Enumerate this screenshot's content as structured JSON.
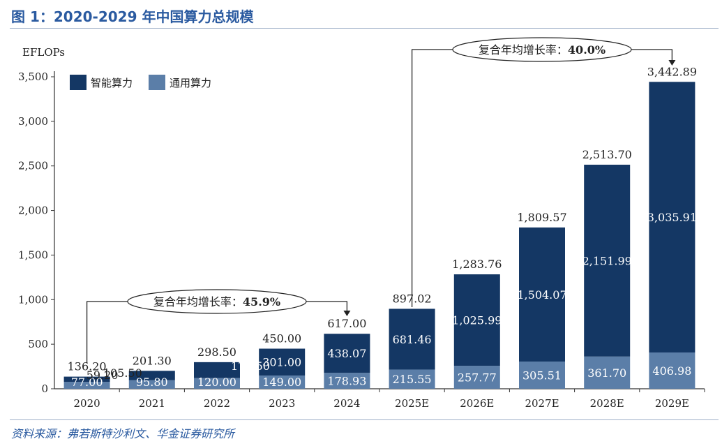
{
  "figure_title": "图 1：2020-2029 年中国算力总规模",
  "source_text": "资料来源：弗若斯特沙利文、华金证券研究所",
  "colors": {
    "smart": "#143764",
    "general": "#5b7ea8",
    "title": "#2a5aa0",
    "axis": "#333333"
  },
  "chart_data": {
    "type": "bar",
    "stacked": true,
    "title": "",
    "xlabel": "",
    "ylabel": "EFLOPs",
    "ylim": [
      0,
      3500
    ],
    "yticks": [
      0,
      500,
      1000,
      1500,
      2000,
      2500,
      3000,
      3500
    ],
    "ytick_labels": [
      "0",
      "500",
      "1,000",
      "1,500",
      "2,000",
      "2,500",
      "3,000",
      "3,500"
    ],
    "categories": [
      "2020",
      "2021",
      "2022",
      "2023",
      "2024",
      "2025E",
      "2026E",
      "2027E",
      "2028E",
      "2029E"
    ],
    "series": [
      {
        "name": "通用算力",
        "values": [
          77.0,
          95.8,
          120.0,
          149.0,
          178.93,
          215.55,
          257.77,
          305.51,
          361.7,
          406.98
        ],
        "labels": [
          "77.00",
          "95.80",
          "120.00",
          "149.00",
          "178.93",
          "215.55",
          "257.77",
          "305.51",
          "361.70",
          "406.98"
        ]
      },
      {
        "name": "智能算力",
        "values": [
          59.2,
          105.5,
          178.5,
          301.0,
          438.07,
          681.46,
          1025.99,
          1504.07,
          2151.99,
          3035.91
        ],
        "labels": [
          "59.20",
          "105.50",
          "178.50",
          "301.00",
          "438.07",
          "681.46",
          "1,025.99",
          "1,504.07",
          "2,151.99",
          "3,035.91"
        ]
      }
    ],
    "totals": [
      "136.20",
      "201.30",
      "298.50",
      "450.00",
      "617.00",
      "897.02",
      "1,283.76",
      "1,809.57",
      "2,513.70",
      "3,442.89"
    ],
    "legend_position": "top-left",
    "grid": false,
    "annotations": [
      {
        "text": "复合年均增长率：",
        "value": "45.9%",
        "from": "2020",
        "to": "2024"
      },
      {
        "text": "复合年均增长率：",
        "value": "40.0%",
        "from": "2025E",
        "to": "2029E"
      }
    ]
  }
}
